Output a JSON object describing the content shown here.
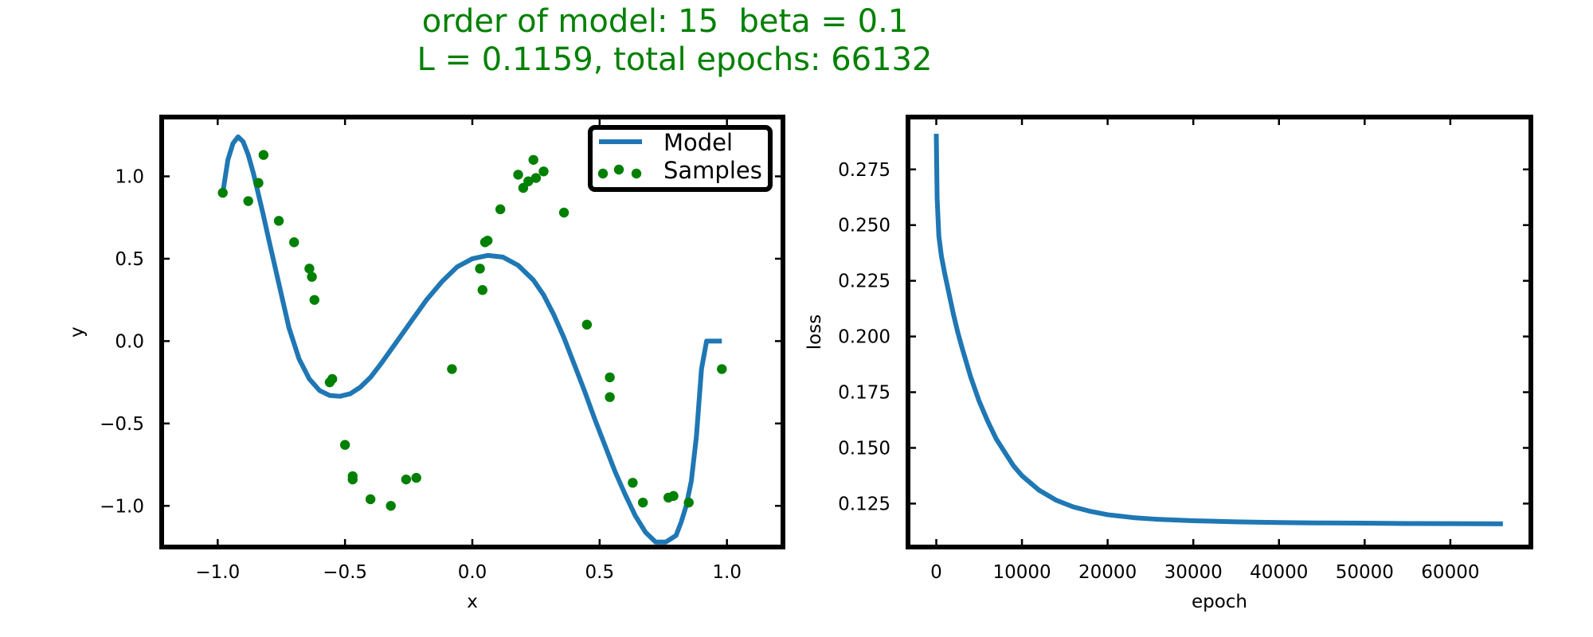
{
  "title": {
    "line1": "order of model: 15  beta = 0.1",
    "line2": "L = 0.1159, total epochs: 66132",
    "color": "#008000"
  },
  "chart_data": [
    {
      "type": "scatter",
      "xlabel": "x",
      "ylabel": "y",
      "xlim": [
        -1.22,
        1.22
      ],
      "ylim": [
        -1.25,
        1.36
      ],
      "xticks": [
        -1.0,
        -0.5,
        0.0,
        0.5,
        1.0
      ],
      "xtick_labels": [
        "−1.0",
        "−0.5",
        "0.0",
        "0.5",
        "1.0"
      ],
      "yticks": [
        -1.0,
        -0.5,
        0.0,
        0.5,
        1.0
      ],
      "ytick_labels": [
        "−1.0",
        "−0.5",
        "0.0",
        "0.5",
        "1.0"
      ],
      "grid": false,
      "legend_position": "top-right",
      "series": [
        {
          "name": "Model",
          "kind": "line",
          "color": "#1f77b4",
          "x": [
            -0.98,
            -0.96,
            -0.94,
            -0.92,
            -0.9,
            -0.88,
            -0.86,
            -0.84,
            -0.82,
            -0.8,
            -0.76,
            -0.72,
            -0.68,
            -0.64,
            -0.6,
            -0.56,
            -0.52,
            -0.48,
            -0.44,
            -0.4,
            -0.36,
            -0.3,
            -0.24,
            -0.18,
            -0.12,
            -0.06,
            0.0,
            0.06,
            0.12,
            0.18,
            0.24,
            0.28,
            0.32,
            0.36,
            0.4,
            0.44,
            0.48,
            0.52,
            0.56,
            0.6,
            0.64,
            0.68,
            0.72,
            0.76,
            0.8,
            0.82,
            0.84,
            0.86,
            0.88,
            0.9,
            0.92,
            0.94,
            0.96,
            0.98
          ],
          "y": [
            0.9,
            1.1,
            1.2,
            1.24,
            1.21,
            1.13,
            1.02,
            0.89,
            0.76,
            0.62,
            0.35,
            0.08,
            -0.11,
            -0.23,
            -0.3,
            -0.33,
            -0.335,
            -0.32,
            -0.28,
            -0.22,
            -0.14,
            -0.01,
            0.12,
            0.25,
            0.36,
            0.45,
            0.5,
            0.52,
            0.51,
            0.46,
            0.37,
            0.28,
            0.16,
            0.02,
            -0.14,
            -0.3,
            -0.47,
            -0.63,
            -0.79,
            -0.93,
            -1.06,
            -1.16,
            -1.22,
            -1.22,
            -1.18,
            -1.1,
            -1.0,
            -0.85,
            -0.58,
            -0.17,
            -0.0,
            -0.0,
            -0.0,
            -0.0
          ]
        },
        {
          "name": "Samples",
          "kind": "scatter",
          "color": "#008000",
          "x": [
            -0.98,
            -0.88,
            -0.84,
            -0.82,
            -0.76,
            -0.7,
            -0.64,
            -0.63,
            -0.62,
            -0.56,
            -0.55,
            -0.5,
            -0.47,
            -0.47,
            -0.4,
            -0.32,
            -0.26,
            -0.22,
            -0.08,
            0.03,
            0.04,
            0.05,
            0.06,
            0.11,
            0.18,
            0.2,
            0.22,
            0.24,
            0.25,
            0.28,
            0.36,
            0.45,
            0.54,
            0.54,
            0.63,
            0.67,
            0.77,
            0.79,
            0.85,
            0.98
          ],
          "y": [
            0.9,
            0.85,
            0.96,
            1.13,
            0.73,
            0.6,
            0.44,
            0.39,
            0.25,
            -0.25,
            -0.23,
            -0.63,
            -0.84,
            -0.82,
            -0.96,
            -1.0,
            -0.84,
            -0.83,
            -0.17,
            0.44,
            0.31,
            0.6,
            0.61,
            0.8,
            1.01,
            0.93,
            0.97,
            1.1,
            0.99,
            1.03,
            0.78,
            0.1,
            -0.22,
            -0.34,
            -0.86,
            -0.98,
            -0.95,
            -0.94,
            -0.98,
            -0.17
          ]
        }
      ]
    },
    {
      "type": "line",
      "xlabel": "epoch",
      "ylabel": "loss",
      "xlim": [
        -3300,
        69400
      ],
      "ylim": [
        0.1055,
        0.2985
      ],
      "xticks": [
        0,
        10000,
        20000,
        30000,
        40000,
        50000,
        60000
      ],
      "xtick_labels": [
        "0",
        "10000",
        "20000",
        "30000",
        "40000",
        "50000",
        "60000"
      ],
      "yticks": [
        0.125,
        0.15,
        0.175,
        0.2,
        0.225,
        0.25,
        0.275
      ],
      "ytick_labels": [
        "0.125",
        "0.150",
        "0.175",
        "0.200",
        "0.225",
        "0.250",
        "0.275"
      ],
      "grid": false,
      "series": [
        {
          "kind": "line",
          "color": "#1f77b4",
          "x": [
            0,
            100,
            300,
            600,
            1000,
            1500,
            2000,
            2500,
            3000,
            4000,
            5000,
            6000,
            7000,
            8000,
            9000,
            10000,
            12000,
            14000,
            16000,
            18000,
            20000,
            23000,
            26000,
            30000,
            35000,
            40000,
            45000,
            50000,
            55000,
            60000,
            66132
          ],
          "y": [
            0.291,
            0.262,
            0.245,
            0.236,
            0.228,
            0.219,
            0.21,
            0.202,
            0.195,
            0.182,
            0.171,
            0.162,
            0.154,
            0.148,
            0.142,
            0.1375,
            0.131,
            0.1265,
            0.1235,
            0.1215,
            0.12,
            0.1187,
            0.1179,
            0.1173,
            0.1168,
            0.1165,
            0.1163,
            0.1162,
            0.11605,
            0.116,
            0.1159
          ]
        }
      ]
    }
  ]
}
